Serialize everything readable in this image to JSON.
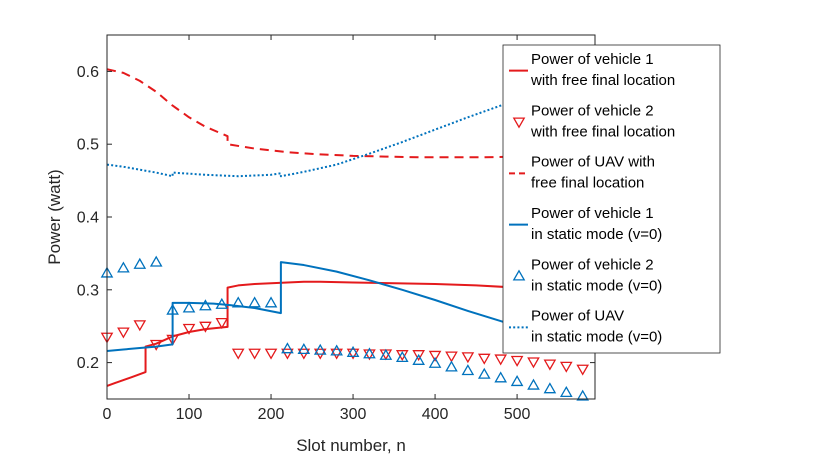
{
  "chart_data": {
    "type": "line",
    "title": "",
    "xlabel": "Slot number, n",
    "ylabel": "Power (watt)",
    "xlim": [
      0,
      595
    ],
    "ylim": [
      0.15,
      0.65
    ],
    "xticks": [
      0,
      100,
      200,
      300,
      400,
      500
    ],
    "yticks": [
      0.2,
      0.3,
      0.4,
      0.5,
      0.6
    ],
    "xtick_labels": [
      "0",
      "100",
      "200",
      "300",
      "400",
      "500"
    ],
    "ytick_labels": [
      "0.2",
      "0.3",
      "0.4",
      "0.5",
      "0.6"
    ],
    "grid": false,
    "legend_position": "top-right",
    "colors": {
      "red": "#e41a1c",
      "blue": "#0072bd",
      "axis": "#262626"
    },
    "series": [
      {
        "name": "Power of vehicle 1 with free final location",
        "legend_lines": [
          "Power of vehicle 1",
          "with free final location"
        ],
        "style": "solid",
        "color": "#e41a1c",
        "marker": "none",
        "x": [
          0,
          10,
          20,
          30,
          47,
          47,
          60,
          70,
          80,
          100,
          120,
          147,
          147,
          160,
          180,
          200,
          220,
          240,
          260,
          300,
          350,
          400,
          450,
          500,
          550,
          595
        ],
        "y": [
          0.168,
          0.172,
          0.176,
          0.18,
          0.187,
          0.222,
          0.226,
          0.231,
          0.236,
          0.242,
          0.246,
          0.249,
          0.303,
          0.306,
          0.308,
          0.309,
          0.31,
          0.311,
          0.311,
          0.31,
          0.309,
          0.308,
          0.306,
          0.303,
          0.298,
          0.289
        ]
      },
      {
        "name": "Power of vehicle 2 with free final location",
        "legend_lines": [
          "Power of vehicle 2",
          "with free final location"
        ],
        "style": "none",
        "color": "#e41a1c",
        "marker": "triangle-down",
        "x": [
          0,
          20,
          40,
          60,
          80,
          100,
          120,
          140,
          160,
          180,
          200,
          220,
          240,
          260,
          280,
          300,
          320,
          340,
          360,
          380,
          400,
          420,
          440,
          460,
          480,
          500,
          520,
          540,
          560,
          580
        ],
        "y": [
          0.235,
          0.242,
          0.252,
          0.225,
          0.232,
          0.247,
          0.25,
          0.255,
          0.213,
          0.213,
          0.213,
          0.213,
          0.213,
          0.213,
          0.213,
          0.213,
          0.212,
          0.212,
          0.211,
          0.211,
          0.21,
          0.209,
          0.208,
          0.206,
          0.205,
          0.203,
          0.201,
          0.198,
          0.195,
          0.191
        ]
      },
      {
        "name": "Power of UAV with free final location",
        "legend_lines": [
          "Power of UAV with",
          "free final location"
        ],
        "style": "dashed",
        "color": "#e41a1c",
        "marker": "none",
        "x": [
          0,
          20,
          40,
          60,
          80,
          100,
          120,
          147,
          147,
          180,
          220,
          260,
          300,
          340,
          380,
          420,
          460,
          500,
          540,
          595
        ],
        "y": [
          0.603,
          0.598,
          0.587,
          0.572,
          0.553,
          0.537,
          0.524,
          0.511,
          0.5,
          0.494,
          0.489,
          0.486,
          0.484,
          0.483,
          0.482,
          0.482,
          0.482,
          0.483,
          0.484,
          0.487
        ]
      },
      {
        "name": "Power of vehicle 1 in static mode (v=0)",
        "legend_lines": [
          "Power of vehicle 1",
          "in static mode (v=0)"
        ],
        "style": "solid",
        "color": "#0072bd",
        "marker": "none",
        "x": [
          0,
          20,
          40,
          60,
          80,
          80,
          100,
          130,
          150,
          180,
          212,
          212,
          240,
          280,
          320,
          360,
          400,
          440,
          480,
          520,
          560,
          595
        ],
        "y": [
          0.216,
          0.218,
          0.22,
          0.222,
          0.225,
          0.282,
          0.282,
          0.281,
          0.279,
          0.275,
          0.268,
          0.338,
          0.334,
          0.325,
          0.313,
          0.3,
          0.286,
          0.271,
          0.257,
          0.243,
          0.231,
          0.222
        ]
      },
      {
        "name": "Power of vehicle 2 in static mode (v=0)",
        "legend_lines": [
          "Power of vehicle 2",
          "in static mode (v=0)"
        ],
        "style": "none",
        "color": "#0072bd",
        "marker": "triangle-up",
        "x": [
          0,
          20,
          40,
          60,
          80,
          100,
          120,
          140,
          160,
          180,
          200,
          220,
          240,
          260,
          280,
          300,
          320,
          340,
          360,
          380,
          400,
          420,
          440,
          460,
          480,
          500,
          520,
          540,
          560,
          580
        ],
        "y": [
          0.323,
          0.33,
          0.335,
          0.338,
          0.272,
          0.275,
          0.278,
          0.28,
          0.282,
          0.282,
          0.282,
          0.219,
          0.218,
          0.217,
          0.216,
          0.214,
          0.212,
          0.21,
          0.207,
          0.203,
          0.199,
          0.194,
          0.189,
          0.184,
          0.179,
          0.174,
          0.169,
          0.164,
          0.159,
          0.154
        ]
      },
      {
        "name": "Power of UAV in static mode (v=0)",
        "legend_lines": [
          "Power of UAV",
          "in static mode (v=0)"
        ],
        "style": "dotted",
        "color": "#0072bd",
        "marker": "none",
        "x": [
          0,
          20,
          40,
          60,
          80,
          80,
          120,
          160,
          200,
          212,
          212,
          240,
          280,
          320,
          360,
          400,
          440,
          480,
          520,
          560,
          595
        ],
        "y": [
          0.472,
          0.469,
          0.465,
          0.461,
          0.456,
          0.461,
          0.458,
          0.456,
          0.458,
          0.46,
          0.456,
          0.462,
          0.472,
          0.487,
          0.503,
          0.52,
          0.537,
          0.553,
          0.567,
          0.58,
          0.592
        ]
      }
    ]
  }
}
